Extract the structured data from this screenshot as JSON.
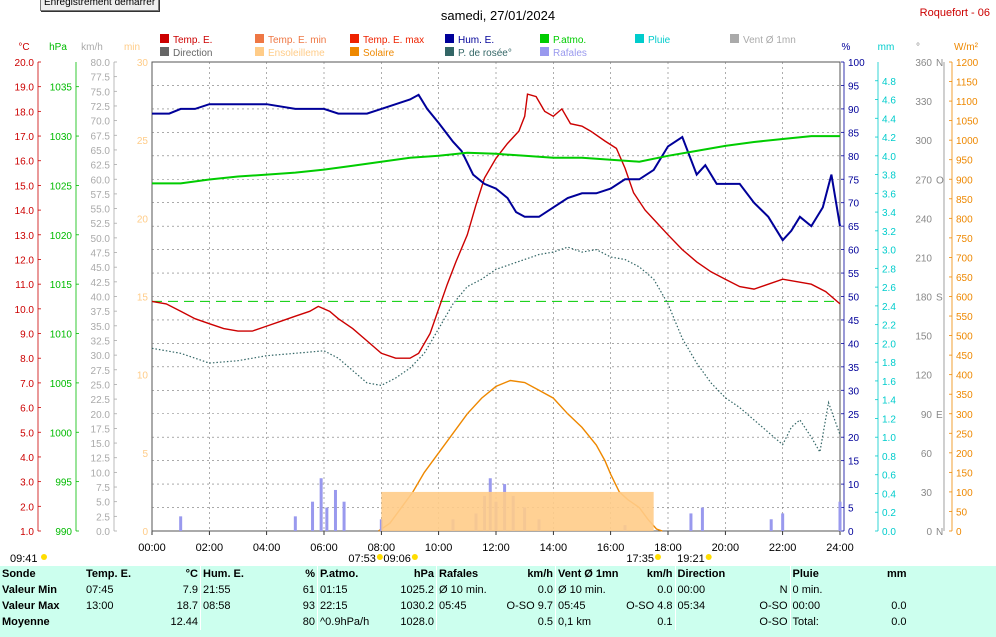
{
  "top": {
    "record_button": "Enregistrement démarrer",
    "date": "samedi, 27/01/2024",
    "station": "Roquefort - 06"
  },
  "legend": [
    {
      "label": "Temp. E.",
      "color": "#cc0000"
    },
    {
      "label": "Temp. E. min",
      "color": "#ee7744"
    },
    {
      "label": "Temp. E. max",
      "color": "#ee2200"
    },
    {
      "label": "Hum. E.",
      "color": "#000099"
    },
    {
      "label": "P.atmo.",
      "color": "#00cc00"
    },
    {
      "label": "Pluie",
      "color": "#00cccc"
    },
    {
      "label": "Vent Ø 1mn",
      "color": "#aaaaaa"
    },
    {
      "label": "Direction",
      "color": "#666666"
    },
    {
      "label": "Ensoleilleme",
      "color": "#ffcc88"
    },
    {
      "label": "Solaire",
      "color": "#ee8800"
    },
    {
      "label": "P. de rosée°",
      "color": "#336666"
    },
    {
      "label": "Rafales",
      "color": "#9999ee"
    }
  ],
  "axes": {
    "temp": {
      "unit": "°C",
      "ticks": [
        "1.0",
        "2.0",
        "3.0",
        "4.0",
        "5.0",
        "6.0",
        "7.0",
        "8.0",
        "9.0",
        "10.0",
        "11.0",
        "12.0",
        "13.0",
        "14.0",
        "15.0",
        "16.0",
        "17.0",
        "18.0",
        "19.0",
        "20.0"
      ]
    },
    "press": {
      "unit": "hPa",
      "ticks": [
        "990",
        "995",
        "1000",
        "1005",
        "1010",
        "1015",
        "1020",
        "1025",
        "1030",
        "1035"
      ]
    },
    "wind": {
      "unit": "km/h",
      "ticks": [
        "0.0",
        "2.5",
        "5.0",
        "7.5",
        "10.0",
        "12.5",
        "15.0",
        "17.5",
        "20.0",
        "22.5",
        "25.0",
        "27.5",
        "30.0",
        "32.5",
        "35.0",
        "37.5",
        "40.0",
        "42.5",
        "45.0",
        "47.5",
        "50.0",
        "52.5",
        "55.0",
        "57.5",
        "60.0",
        "62.5",
        "65.0",
        "67.5",
        "70.0",
        "72.5",
        "75.0",
        "77.5",
        "80.0"
      ]
    },
    "min": {
      "unit": "min",
      "ticks": [
        "0",
        "5",
        "10",
        "15",
        "20",
        "25",
        "30"
      ]
    },
    "hum": {
      "unit": "%",
      "ticks": [
        "0",
        "5",
        "10",
        "15",
        "20",
        "25",
        "30",
        "35",
        "40",
        "45",
        "50",
        "55",
        "60",
        "65",
        "70",
        "75",
        "80",
        "85",
        "90",
        "95",
        "100"
      ]
    },
    "rain": {
      "unit": "mm",
      "ticks": [
        "0.0",
        "0.2",
        "0.4",
        "0.6",
        "0.8",
        "1.0",
        "1.2",
        "1.4",
        "1.6",
        "1.8",
        "2.0",
        "2.2",
        "2.4",
        "2.6",
        "2.8",
        "3.0",
        "3.2",
        "3.4",
        "3.6",
        "3.8",
        "4.0",
        "4.2",
        "4.4",
        "4.6",
        "4.8"
      ]
    },
    "dir": {
      "unit": "°",
      "ticks": [
        "0",
        "30",
        "60",
        "90",
        "120",
        "150",
        "180",
        "210",
        "240",
        "270",
        "300",
        "330",
        "360"
      ],
      "cardinals": {
        "0": "N",
        "90": "E",
        "180": "S",
        "270": "O",
        "360": "N"
      }
    },
    "solar": {
      "unit": "W/m²",
      "ticks": [
        "0",
        "50",
        "100",
        "150",
        "200",
        "250",
        "300",
        "350",
        "400",
        "450",
        "500",
        "550",
        "600",
        "650",
        "700",
        "750",
        "800",
        "850",
        "900",
        "950",
        "1000",
        "1050",
        "1100",
        "1150",
        "1200"
      ]
    },
    "time": [
      "00:00",
      "02:00",
      "04:00",
      "06:00",
      "08:00",
      "10:00",
      "12:00",
      "14:00",
      "16:00",
      "18:00",
      "20:00",
      "22:00",
      "24:00"
    ]
  },
  "sun_labels": [
    {
      "text": "09:41",
      "hour": -4.8
    },
    {
      "text": "07:53",
      "hour": 7.88
    },
    {
      "text": "09:06",
      "hour": 9.1
    },
    {
      "text": "17:35",
      "hour": 17.58
    },
    {
      "text": "19:21",
      "hour": 19.35
    }
  ],
  "chart_data": {
    "type": "line",
    "x_unit": "hour",
    "xlim": [
      0,
      24
    ],
    "series": [
      {
        "name": "Temp. E.",
        "unit": "°C",
        "color": "#cc0000",
        "points": [
          [
            0,
            10.3
          ],
          [
            0.5,
            10.2
          ],
          [
            1,
            9.9
          ],
          [
            1.5,
            9.6
          ],
          [
            2,
            9.4
          ],
          [
            2.5,
            9.2
          ],
          [
            3,
            9.1
          ],
          [
            3.5,
            9.1
          ],
          [
            4,
            9.3
          ],
          [
            4.5,
            9.5
          ],
          [
            5,
            9.7
          ],
          [
            5.5,
            9.9
          ],
          [
            5.8,
            10.1
          ],
          [
            6.2,
            9.9
          ],
          [
            6.5,
            9.6
          ],
          [
            7,
            9.2
          ],
          [
            7.5,
            8.7
          ],
          [
            8,
            8.2
          ],
          [
            8.5,
            8.0
          ],
          [
            9,
            8.0
          ],
          [
            9.3,
            8.2
          ],
          [
            9.7,
            9.0
          ],
          [
            10,
            10.0
          ],
          [
            10.3,
            11.0
          ],
          [
            10.6,
            11.9
          ],
          [
            11,
            13.0
          ],
          [
            11.3,
            14.2
          ],
          [
            11.6,
            15.3
          ],
          [
            12,
            16.1
          ],
          [
            12.4,
            16.7
          ],
          [
            12.8,
            17.2
          ],
          [
            13.0,
            17.8
          ],
          [
            13.1,
            18.7
          ],
          [
            13.4,
            18.6
          ],
          [
            13.7,
            18.0
          ],
          [
            14,
            17.8
          ],
          [
            14.3,
            18.1
          ],
          [
            14.6,
            17.5
          ],
          [
            15,
            17.4
          ],
          [
            15.3,
            17.2
          ],
          [
            15.8,
            16.8
          ],
          [
            16.2,
            16.5
          ],
          [
            16.5,
            15.7
          ],
          [
            16.8,
            14.7
          ],
          [
            17.2,
            14.0
          ],
          [
            17.6,
            13.5
          ],
          [
            18,
            13.0
          ],
          [
            18.5,
            12.4
          ],
          [
            19,
            11.9
          ],
          [
            19.5,
            11.5
          ],
          [
            20,
            11.2
          ],
          [
            20.5,
            10.9
          ],
          [
            21,
            10.8
          ],
          [
            21.5,
            11.0
          ],
          [
            22,
            11.2
          ],
          [
            22.5,
            11.1
          ],
          [
            23,
            11.0
          ],
          [
            23.5,
            10.7
          ],
          [
            24,
            10.2
          ]
        ]
      },
      {
        "name": "Hum. E.",
        "unit": "%",
        "color": "#000099",
        "points": [
          [
            0,
            89
          ],
          [
            0.6,
            89
          ],
          [
            1,
            90
          ],
          [
            1.5,
            90
          ],
          [
            2,
            91
          ],
          [
            3,
            91
          ],
          [
            4,
            91
          ],
          [
            5,
            90
          ],
          [
            6,
            90
          ],
          [
            6.5,
            89
          ],
          [
            7,
            89
          ],
          [
            7.5,
            89
          ],
          [
            8,
            90
          ],
          [
            8.5,
            91
          ],
          [
            9,
            92
          ],
          [
            9.3,
            93
          ],
          [
            9.6,
            90
          ],
          [
            10,
            87
          ],
          [
            10.5,
            83
          ],
          [
            10.8,
            81
          ],
          [
            11.2,
            76
          ],
          [
            11.6,
            74
          ],
          [
            12,
            73
          ],
          [
            12.4,
            71
          ],
          [
            12.7,
            68
          ],
          [
            13,
            67
          ],
          [
            13.5,
            67
          ],
          [
            14,
            69
          ],
          [
            14.5,
            71
          ],
          [
            15,
            72
          ],
          [
            15.5,
            72
          ],
          [
            16,
            73
          ],
          [
            16.5,
            75
          ],
          [
            17,
            75
          ],
          [
            17.5,
            77
          ],
          [
            18,
            82
          ],
          [
            18.5,
            84
          ],
          [
            19,
            76
          ],
          [
            19.3,
            78
          ],
          [
            19.7,
            74
          ],
          [
            20,
            74
          ],
          [
            20.5,
            74
          ],
          [
            21,
            70
          ],
          [
            21.5,
            67
          ],
          [
            22,
            62
          ],
          [
            22.3,
            64
          ],
          [
            22.6,
            67
          ],
          [
            23,
            65
          ],
          [
            23.4,
            69
          ],
          [
            23.7,
            76
          ],
          [
            24,
            65
          ]
        ]
      },
      {
        "name": "P.atmo.",
        "unit": "hPa",
        "color": "#00cc00",
        "points": [
          [
            0,
            1025.2
          ],
          [
            1,
            1025.2
          ],
          [
            2,
            1025.6
          ],
          [
            3,
            1025.9
          ],
          [
            4,
            1026.1
          ],
          [
            5,
            1026.3
          ],
          [
            6,
            1026.6
          ],
          [
            7,
            1027.0
          ],
          [
            8,
            1027.4
          ],
          [
            9,
            1027.8
          ],
          [
            10,
            1028.0
          ],
          [
            11,
            1028.3
          ],
          [
            12,
            1028.2
          ],
          [
            13,
            1028.0
          ],
          [
            14,
            1027.8
          ],
          [
            15,
            1027.8
          ],
          [
            16,
            1027.6
          ],
          [
            17,
            1027.4
          ],
          [
            18,
            1028.0
          ],
          [
            19,
            1028.5
          ],
          [
            20,
            1029.0
          ],
          [
            21,
            1029.4
          ],
          [
            22,
            1029.7
          ],
          [
            23,
            1030.0
          ],
          [
            24,
            1030.0
          ]
        ]
      },
      {
        "name": "P. de rosée°",
        "unit": "°C",
        "color": "#336666",
        "points": [
          [
            0,
            8.4
          ],
          [
            1,
            8.2
          ],
          [
            2,
            7.8
          ],
          [
            3,
            7.9
          ],
          [
            4,
            8.1
          ],
          [
            5,
            8.2
          ],
          [
            6,
            8.3
          ],
          [
            6.5,
            8.0
          ],
          [
            7,
            7.5
          ],
          [
            7.5,
            7.0
          ],
          [
            8,
            6.9
          ],
          [
            8.5,
            7.2
          ],
          [
            9,
            7.6
          ],
          [
            9.5,
            8.2
          ],
          [
            10,
            9.2
          ],
          [
            10.5,
            10.2
          ],
          [
            11,
            10.9
          ],
          [
            11.5,
            11.2
          ],
          [
            12,
            11.6
          ],
          [
            12.5,
            11.8
          ],
          [
            13,
            12.0
          ],
          [
            13.5,
            12.2
          ],
          [
            14,
            12.3
          ],
          [
            14.5,
            12.5
          ],
          [
            15,
            12.3
          ],
          [
            15.5,
            12.4
          ],
          [
            16,
            12.1
          ],
          [
            16.5,
            12.0
          ],
          [
            17,
            11.7
          ],
          [
            17.5,
            11.2
          ],
          [
            18,
            10.2
          ],
          [
            18.5,
            8.8
          ],
          [
            19,
            7.8
          ],
          [
            19.5,
            7.0
          ],
          [
            20,
            6.4
          ],
          [
            20.5,
            6.0
          ],
          [
            21,
            5.5
          ],
          [
            21.5,
            5.0
          ],
          [
            22,
            4.5
          ],
          [
            22.3,
            5.2
          ],
          [
            22.6,
            5.5
          ],
          [
            23,
            4.8
          ],
          [
            23.3,
            4.2
          ],
          [
            23.6,
            6.2
          ],
          [
            24,
            4.9
          ]
        ]
      },
      {
        "name": "Solaire",
        "unit": "W/m²",
        "color": "#ee8800",
        "points": [
          [
            7.9,
            0
          ],
          [
            8.3,
            20
          ],
          [
            8.7,
            60
          ],
          [
            9.1,
            100
          ],
          [
            9.5,
            150
          ],
          [
            10,
            200
          ],
          [
            10.5,
            250
          ],
          [
            11,
            300
          ],
          [
            11.5,
            340
          ],
          [
            12,
            370
          ],
          [
            12.5,
            385
          ],
          [
            13,
            380
          ],
          [
            13.5,
            360
          ],
          [
            14,
            340
          ],
          [
            14.5,
            300
          ],
          [
            15,
            265
          ],
          [
            15.5,
            220
          ],
          [
            15.8,
            180
          ],
          [
            16,
            145
          ],
          [
            16.3,
            100
          ],
          [
            16.6,
            80
          ],
          [
            17,
            60
          ],
          [
            17.3,
            30
          ],
          [
            17.6,
            5
          ],
          [
            17.8,
            0
          ]
        ]
      },
      {
        "name": "Rafales",
        "unit": "km/h",
        "color": "#9999ee",
        "points": [
          [
            1,
            2.5
          ],
          [
            5,
            2.5
          ],
          [
            5.6,
            5
          ],
          [
            5.9,
            9
          ],
          [
            6.1,
            4
          ],
          [
            6.4,
            7
          ],
          [
            6.7,
            5
          ],
          [
            8.0,
            2
          ],
          [
            10.5,
            2
          ],
          [
            11.3,
            3
          ],
          [
            11.6,
            6
          ],
          [
            11.8,
            9
          ],
          [
            12,
            5
          ],
          [
            12.3,
            8
          ],
          [
            12.6,
            6
          ],
          [
            13.0,
            4
          ],
          [
            13.5,
            2
          ],
          [
            16.5,
            1
          ],
          [
            18.8,
            3
          ],
          [
            19.2,
            4
          ],
          [
            21.6,
            2
          ],
          [
            22.0,
            3
          ],
          [
            24,
            5
          ]
        ]
      },
      {
        "name": "Ensoleilleme",
        "unit": "min",
        "color": "#ffcc88",
        "points": [
          [
            8.0,
            2.5
          ],
          [
            17.5,
            2.5
          ]
        ]
      }
    ],
    "reference_line": {
      "name": "P. de rosée°",
      "unit": "°C",
      "value": 10.3
    }
  },
  "stats": {
    "headers": [
      "Sonde",
      "Temp. E.",
      "°C",
      "Hum. E.",
      "%",
      "P.atmo.",
      "hPa",
      "Rafales",
      "km/h",
      "Vent Ø 1mn",
      "km/h",
      "Direction",
      "",
      "Pluie",
      "mm"
    ],
    "rows": [
      [
        "Valeur Min",
        "07:45",
        "7.9",
        "21:55",
        "61",
        "01:15",
        "1025.2",
        "Ø 10 min.",
        "0.0",
        "Ø 10 min.",
        "0.0",
        "00:00",
        "N",
        "0 min.",
        ""
      ],
      [
        "Valeur Max",
        "13:00",
        "18.7",
        "08:58",
        "93",
        "22:15",
        "1030.2",
        "05:45",
        "O-SO 9.7",
        "05:45",
        "O-SO 4.8",
        "05:34",
        "O-SO",
        "00:00",
        "0.0"
      ],
      [
        "Moyenne",
        "",
        "12.44",
        "",
        "80",
        "^0.9hPa/h",
        "1028.0",
        "",
        "0.5",
        "0,1 km",
        "0.1",
        "",
        "O-SO",
        "Total:",
        "0.0"
      ]
    ]
  }
}
